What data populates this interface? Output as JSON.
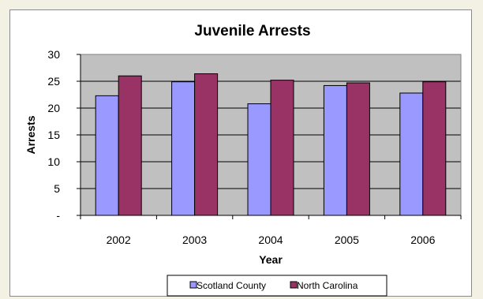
{
  "chart_data": {
    "type": "bar",
    "title": "Juvenile Arrests",
    "xlabel": "Year",
    "ylabel": "Arrests",
    "categories": [
      "2002",
      "2003",
      "2004",
      "2005",
      "2006"
    ],
    "series": [
      {
        "name": "Scotland County",
        "values": [
          22.3,
          24.9,
          20.8,
          24.2,
          22.8
        ],
        "color": "#9999ff"
      },
      {
        "name": "North Carolina",
        "values": [
          26.0,
          26.4,
          25.2,
          24.7,
          24.9
        ],
        "color": "#993366"
      }
    ],
    "ylim": [
      0,
      30
    ],
    "yticks": [
      0,
      5,
      10,
      15,
      20,
      25,
      30
    ],
    "ytick_labels": [
      "-",
      "5",
      "10",
      "15",
      "20",
      "25",
      "30"
    ],
    "grid": true,
    "plot_background": "#c0c0c0",
    "legend_position": "bottom"
  }
}
